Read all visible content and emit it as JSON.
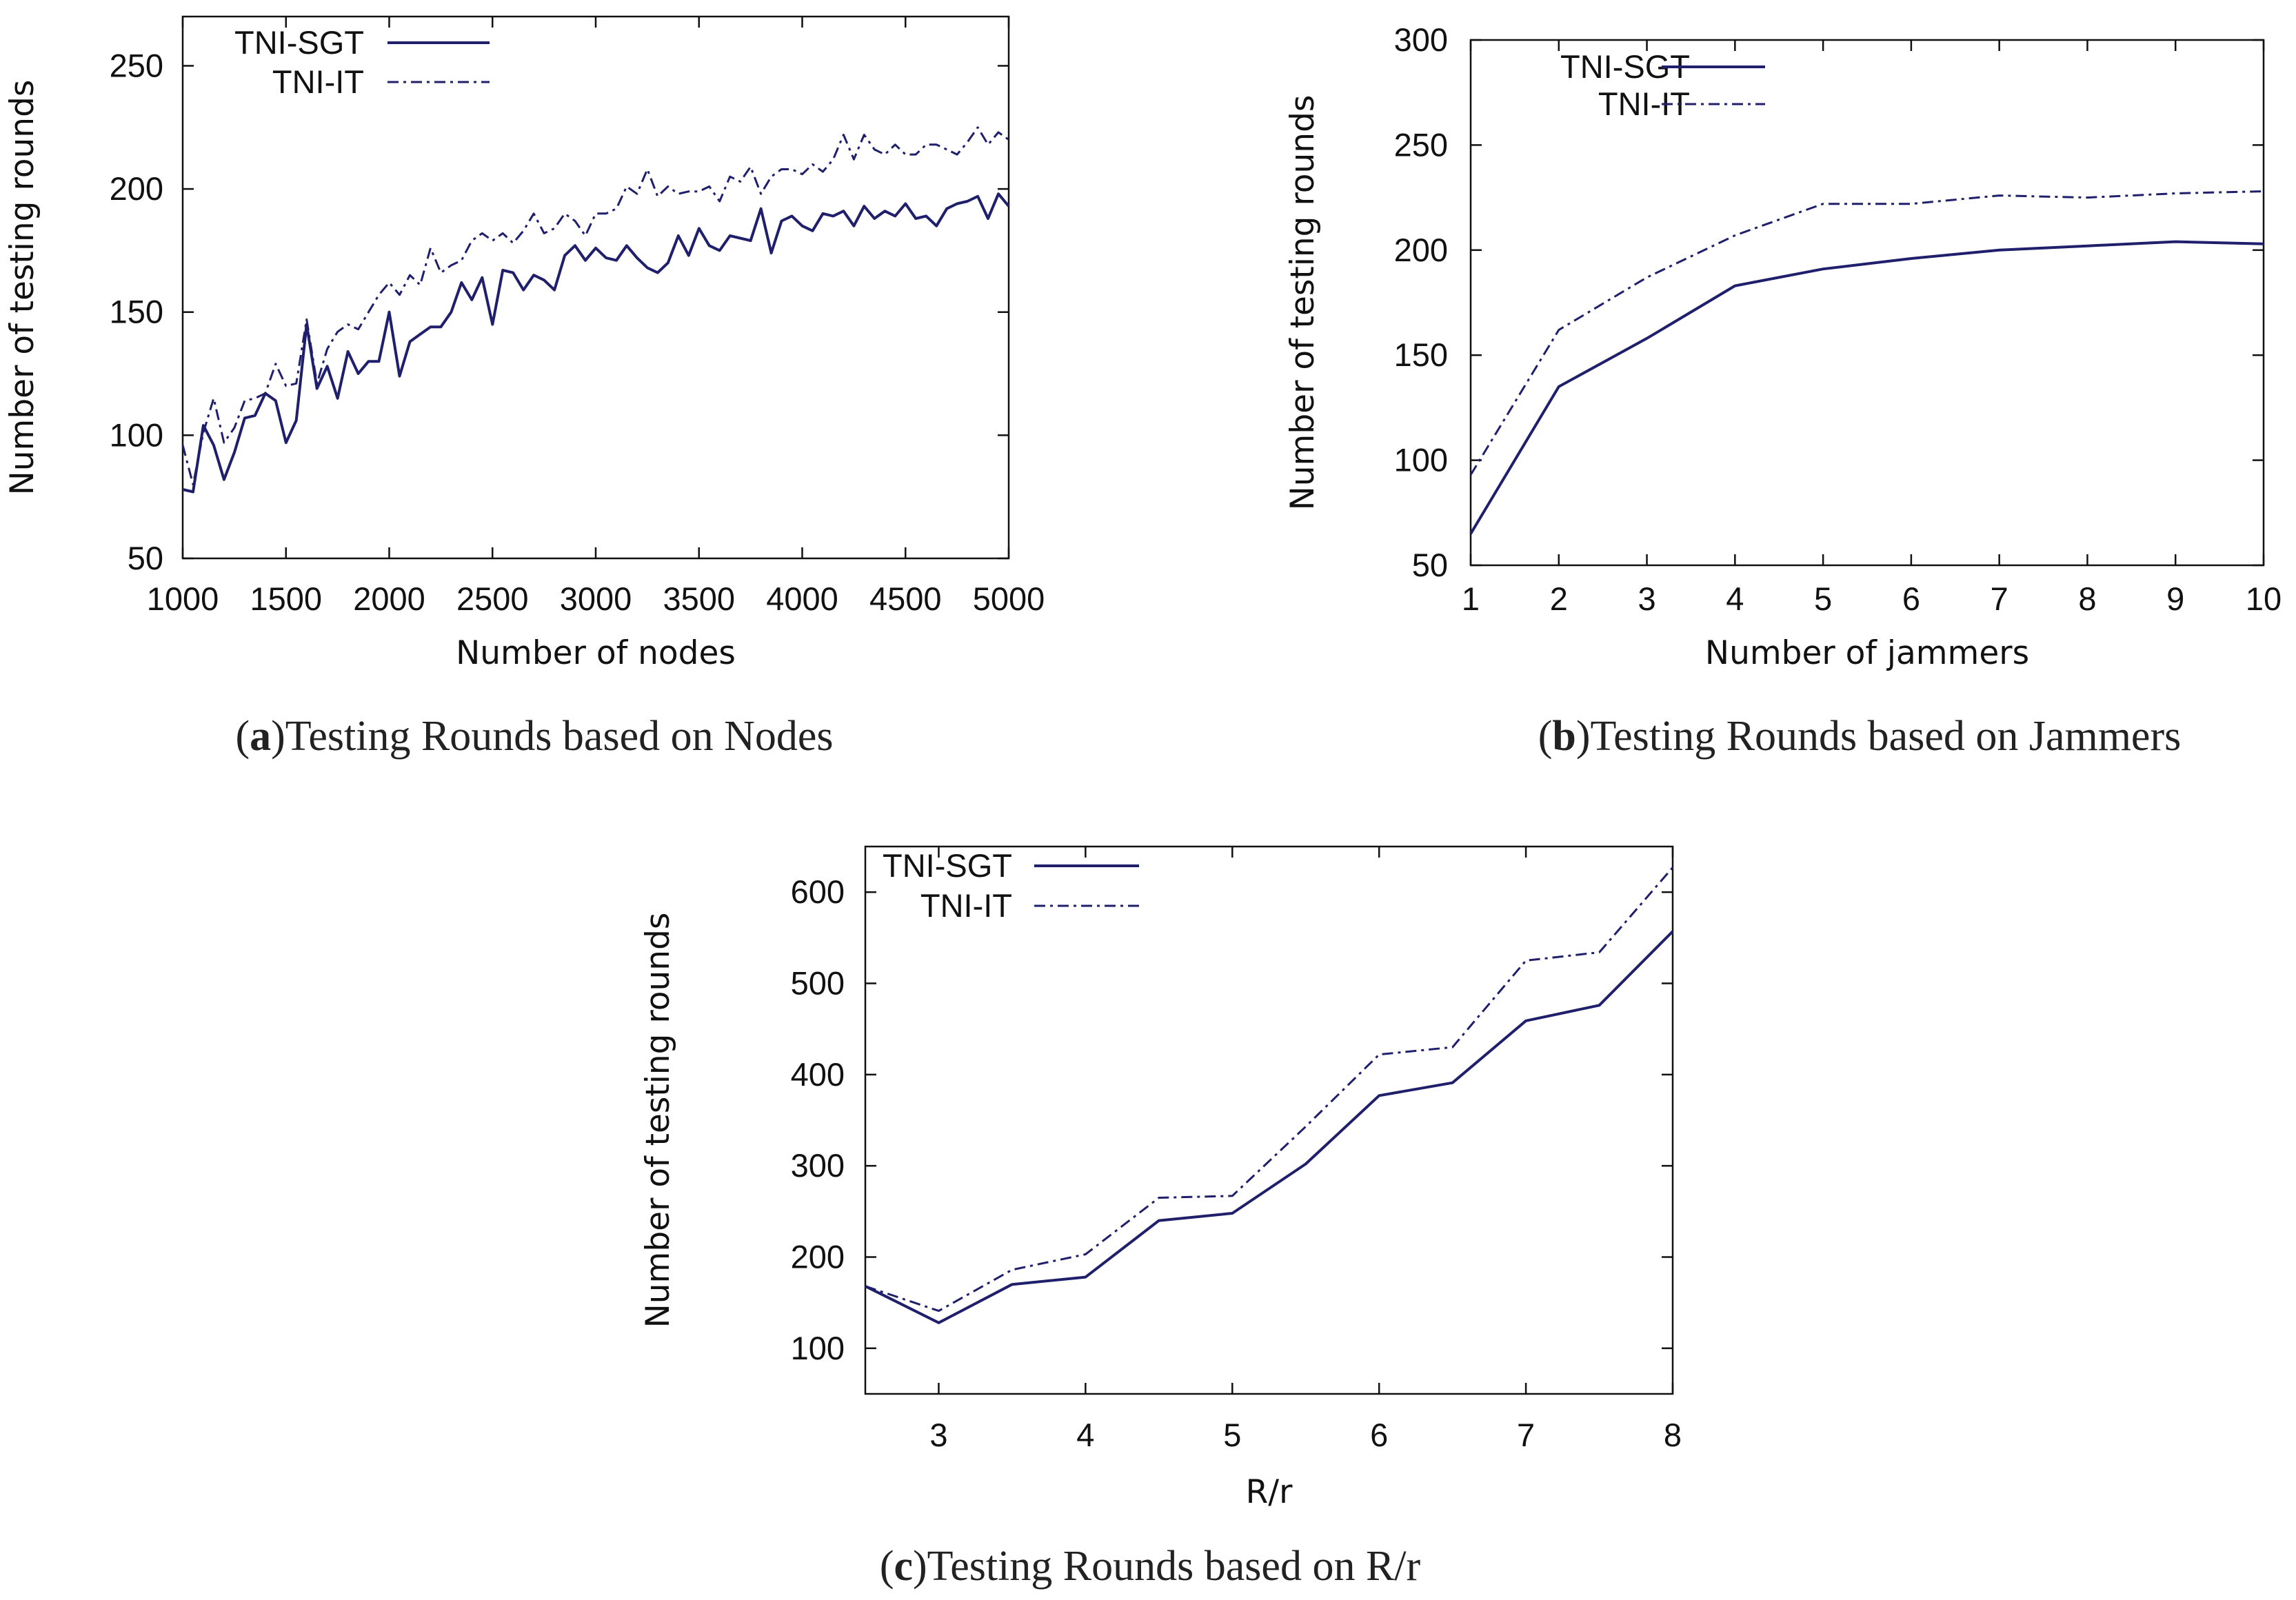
{
  "colors": {
    "line": "#1f1f6b",
    "axis": "#111111",
    "text": "#111111"
  },
  "chart_data": [
    {
      "id": "a",
      "type": "line",
      "caption_letter": "a",
      "caption": "Testing Rounds based on Nodes",
      "title": "",
      "xlabel": "Number of nodes",
      "ylabel": "Number of testing rounds",
      "xlim": [
        1000,
        5000
      ],
      "ylim": [
        50,
        270
      ],
      "xticks": [
        1000,
        1500,
        2000,
        2500,
        3000,
        3500,
        4000,
        4500,
        5000
      ],
      "yticks": [
        50,
        100,
        150,
        200,
        250
      ],
      "legend_position": "top-left",
      "grid": false,
      "x": [
        1000,
        1050,
        1100,
        1150,
        1200,
        1250,
        1300,
        1350,
        1400,
        1450,
        1500,
        1550,
        1600,
        1650,
        1700,
        1750,
        1800,
        1850,
        1900,
        1950,
        2000,
        2050,
        2100,
        2150,
        2200,
        2250,
        2300,
        2350,
        2400,
        2450,
        2500,
        2550,
        2600,
        2650,
        2700,
        2750,
        2800,
        2850,
        2900,
        2950,
        3000,
        3050,
        3100,
        3150,
        3200,
        3250,
        3300,
        3350,
        3400,
        3450,
        3500,
        3550,
        3600,
        3650,
        3700,
        3750,
        3800,
        3850,
        3900,
        3950,
        4000,
        4050,
        4100,
        4150,
        4200,
        4250,
        4300,
        4350,
        4400,
        4450,
        4500,
        4550,
        4600,
        4650,
        4700,
        4750,
        4800,
        4850,
        4900,
        4950,
        5000
      ],
      "series": [
        {
          "name": "TNI-SGT",
          "style": "solid",
          "values": [
            78,
            77,
            104,
            96,
            82,
            93,
            107,
            108,
            117,
            114,
            97,
            106,
            145,
            119,
            128,
            115,
            134,
            125,
            130,
            130,
            150,
            124,
            138,
            141,
            144,
            144,
            150,
            162,
            155,
            164,
            145,
            167,
            166,
            159,
            165,
            163,
            159,
            173,
            177,
            171,
            176,
            172,
            171,
            177,
            172,
            168,
            166,
            170,
            181,
            173,
            184,
            177,
            175,
            181,
            180,
            179,
            192,
            174,
            187,
            189,
            185,
            183,
            190,
            189,
            191,
            185,
            193,
            188,
            191,
            189,
            194,
            188,
            189,
            185,
            192,
            194,
            195,
            197,
            188,
            198,
            193
          ]
        },
        {
          "name": "TNI-IT",
          "style": "dashdot",
          "values": [
            96,
            80,
            101,
            115,
            97,
            103,
            114,
            115,
            117,
            129,
            120,
            121,
            147,
            121,
            135,
            142,
            145,
            143,
            150,
            157,
            162,
            157,
            165,
            161,
            176,
            166,
            169,
            171,
            179,
            182,
            179,
            182,
            178,
            183,
            190,
            182,
            184,
            190,
            187,
            181,
            190,
            190,
            192,
            201,
            198,
            208,
            197,
            201,
            198,
            199,
            199,
            201,
            195,
            205,
            203,
            209,
            198,
            205,
            208,
            208,
            206,
            210,
            207,
            212,
            222,
            212,
            222,
            216,
            214,
            218,
            214,
            214,
            218,
            218,
            216,
            214,
            219,
            225,
            218,
            223,
            220
          ]
        }
      ]
    },
    {
      "id": "b",
      "type": "line",
      "caption_letter": "b",
      "caption": "Testing Rounds based on Jammers",
      "title": "",
      "xlabel": "Number of jammers",
      "ylabel": "Number of testing rounds",
      "xlim": [
        1,
        10
      ],
      "ylim": [
        50,
        300
      ],
      "xticks": [
        1,
        2,
        3,
        4,
        5,
        6,
        7,
        8,
        9,
        10
      ],
      "yticks": [
        50,
        100,
        150,
        200,
        250,
        300
      ],
      "legend_position": "top-left",
      "grid": false,
      "x": [
        1,
        2,
        3,
        4,
        5,
        6,
        7,
        8,
        9,
        10
      ],
      "series": [
        {
          "name": "TNI-SGT",
          "style": "solid",
          "values": [
            65,
            135,
            158,
            183,
            191,
            196,
            200,
            202,
            204,
            203
          ]
        },
        {
          "name": "TNI-IT",
          "style": "dashdot",
          "values": [
            93,
            162,
            187,
            207,
            222,
            222,
            226,
            225,
            227,
            228
          ]
        }
      ]
    },
    {
      "id": "c",
      "type": "line",
      "caption_letter": "c",
      "caption": "Testing Rounds based on R/r",
      "title": "",
      "xlabel": "R/r",
      "ylabel": "Number of testing rounds",
      "xlim": [
        2.5,
        8
      ],
      "ylim": [
        50,
        650
      ],
      "xticks": [
        3,
        4,
        5,
        6,
        7,
        8
      ],
      "yticks": [
        100,
        200,
        300,
        400,
        500,
        600
      ],
      "legend_position": "top-left",
      "grid": false,
      "x": [
        2.5,
        3,
        3.5,
        4,
        4.5,
        5,
        5.5,
        6,
        6.5,
        7,
        7.5,
        8
      ],
      "series": [
        {
          "name": "TNI-SGT",
          "style": "solid",
          "values": [
            168,
            128,
            170,
            178,
            240,
            248,
            302,
            377,
            391,
            459,
            476,
            557
          ]
        },
        {
          "name": "TNI-IT",
          "style": "dashdot",
          "values": [
            168,
            141,
            186,
            203,
            265,
            267,
            343,
            422,
            430,
            525,
            534,
            627
          ]
        }
      ]
    }
  ]
}
